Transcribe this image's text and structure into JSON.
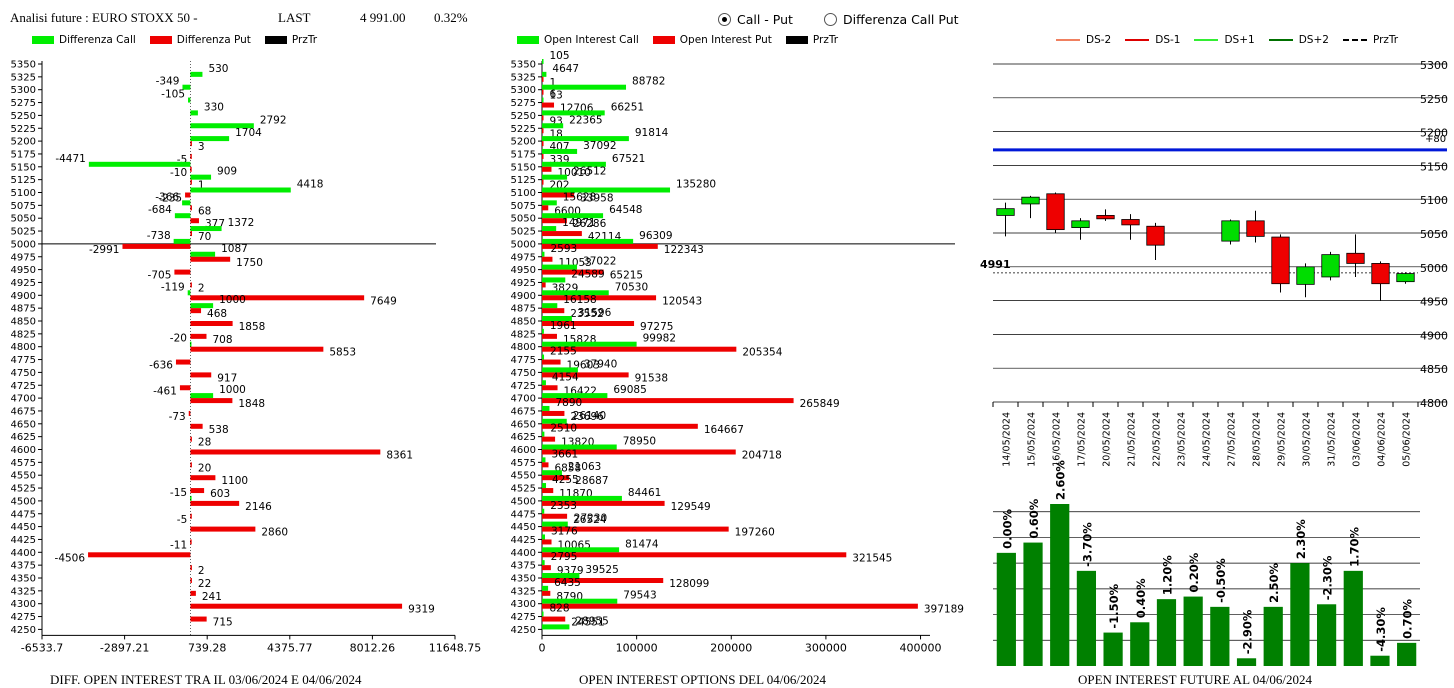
{
  "header": {
    "title": "Analisi future : EURO STOXX 50 -",
    "last_label": "LAST",
    "last_value": "4 991.00",
    "change": "0.32%"
  },
  "radio": {
    "call_put": "Call - Put",
    "diff": "Differenza Call Put",
    "selected": "call_put"
  },
  "legend_left": {
    "call": "Differenza Call",
    "put": "Differenza Put",
    "prz": "PrzTr"
  },
  "legend_mid": {
    "call": "Open Interest Call",
    "put": "Open Interest Put",
    "prz": "PrzTr"
  },
  "legend_right": {
    "ds_m2": "DS-2",
    "ds_m1": "DS-1",
    "ds_p1": "DS+1",
    "ds_p2": "DS+2",
    "prz": "PrzTr"
  },
  "captions": {
    "left": "DIFF. OPEN INTEREST TRA IL 03/06/2024 E 04/06/2024",
    "mid": "OPEN INTEREST OPTIONS DEL 04/06/2024",
    "right": "OPEN INTEREST FUTURE AL 04/06/2024"
  },
  "colors": {
    "call": "#00ee00",
    "put": "#ee0000",
    "blue": "#0018d8",
    "dark_green": "#008000"
  },
  "chart_data": [
    {
      "type": "bar",
      "orientation": "horizontal",
      "strikes": [
        "5350",
        "5325",
        "5300",
        "5275",
        "5250",
        "5225",
        "5200",
        "5175",
        "5150",
        "5125",
        "5100",
        "5075",
        "5050",
        "5025",
        "5000",
        "4975",
        "4950",
        "4925",
        "4900",
        "4875",
        "4850",
        "4825",
        "4800",
        "4775",
        "4750",
        "4725",
        "4700",
        "4675",
        "4650",
        "4625",
        "4600",
        "4575",
        "4550",
        "4525",
        "4500",
        "4475",
        "4450",
        "4425",
        "4400",
        "4375",
        "4350",
        "4325",
        "4300",
        "4275",
        "4250"
      ],
      "series": [
        {
          "name": "Differenza Call",
          "values": [
            null,
            530,
            -349,
            -105,
            330,
            2792,
            1704,
            null,
            -4471,
            909,
            4418,
            -366,
            -684,
            1372,
            -738,
            1087,
            null,
            null,
            -119,
            1000,
            null,
            null,
            -20,
            null,
            null,
            null,
            1000,
            null,
            null,
            null,
            null,
            null,
            null,
            null,
            -15,
            null,
            null,
            null,
            null,
            null,
            null,
            null,
            null,
            null,
            null
          ]
        },
        {
          "name": "Differenza Put",
          "values": [
            null,
            null,
            null,
            null,
            null,
            null,
            3,
            -5,
            -10,
            1,
            -235,
            68,
            377,
            70,
            -2991,
            1750,
            -705,
            2,
            7649,
            468,
            1858,
            708,
            5853,
            -636,
            917,
            -461,
            1848,
            -73,
            538,
            28,
            8361,
            20,
            1100,
            603,
            2146,
            -5,
            2860,
            -11,
            -4506,
            2,
            22,
            241,
            9319,
            715,
            null
          ]
        }
      ],
      "xticks": [
        "-6533.7",
        "-2897.21",
        "739.28",
        "4375.77",
        "8012.26",
        "11648.75"
      ],
      "xlim": [
        -6533.7,
        11648.75
      ],
      "price_strike": "5000"
    },
    {
      "type": "bar",
      "orientation": "horizontal",
      "strikes": [
        "5350",
        "5325",
        "5300",
        "5275",
        "5250",
        "5225",
        "5200",
        "5175",
        "5150",
        "5125",
        "5100",
        "5075",
        "5050",
        "5025",
        "5000",
        "4975",
        "4950",
        "4925",
        "4900",
        "4875",
        "4850",
        "4825",
        "4800",
        "4775",
        "4750",
        "4725",
        "4700",
        "4675",
        "4650",
        "4625",
        "4600",
        "4575",
        "4550",
        "4525",
        "4500",
        "4475",
        "4450",
        "4425",
        "4400",
        "4375",
        "4350",
        "4325",
        "4300",
        "4275",
        "4250"
      ],
      "series": [
        {
          "name": "Open Interest Call",
          "values": [
            105,
            4647,
            88782,
            6,
            66251,
            22365,
            91814,
            37092,
            67521,
            26512,
            135280,
            15628,
            64548,
            14971,
            96309,
            2593,
            37022,
            24589,
            70530,
            16158,
            31596,
            1961,
            99982,
            2155,
            37940,
            4154,
            69085,
            7890,
            26140,
            2510,
            78950,
            3661,
            21063,
            4255,
            84461,
            2353,
            27230,
            3176,
            81474,
            2795,
            39525,
            6435,
            79543,
            828,
            28955
          ]
        },
        {
          "name": "Open Interest Put",
          "values": [
            null,
            1,
            13,
            12706,
            93,
            18,
            407,
            339,
            10010,
            202,
            33958,
            6600,
            26286,
            42114,
            122343,
            11053,
            65215,
            3829,
            120543,
            23552,
            97275,
            15828,
            205354,
            19603,
            91538,
            16422,
            265849,
            23696,
            164667,
            13820,
            204718,
            6858,
            28687,
            11870,
            129549,
            26524,
            197260,
            10065,
            321545,
            9379,
            128099,
            8790,
            397189,
            24551,
            null
          ]
        }
      ],
      "xticks": [
        "0",
        "100000",
        "200000",
        "300000",
        "400000"
      ],
      "xlim": [
        0,
        410000
      ],
      "price_strike": "5000"
    },
    {
      "type": "candlestick",
      "dates": [
        "14/05/2024",
        "15/05/2024",
        "16/05/2024",
        "17/05/2024",
        "20/05/2024",
        "21/05/2024",
        "22/05/2024",
        "23/05/2024",
        "24/05/2024",
        "27/05/2024",
        "28/05/2024",
        "29/05/2024",
        "30/05/2024",
        "31/05/2024",
        "03/06/2024",
        "04/06/2024",
        "05/06/2024"
      ],
      "candles": [
        {
          "o": 5076,
          "h": 5095,
          "l": 5045,
          "c": 5086
        },
        {
          "o": 5093,
          "h": 5105,
          "l": 5072,
          "c": 5103
        },
        {
          "o": 5108,
          "h": 5110,
          "l": 5050,
          "c": 5055
        },
        {
          "o": 5058,
          "h": 5072,
          "l": 5040,
          "c": 5068
        },
        {
          "o": 5076,
          "h": 5085,
          "l": 5068,
          "c": 5071
        },
        {
          "o": 5070,
          "h": 5078,
          "l": 5040,
          "c": 5062
        },
        {
          "o": 5060,
          "h": 5065,
          "l": 5010,
          "c": 5032
        },
        null,
        null,
        {
          "o": 5038,
          "h": 5070,
          "l": 5033,
          "c": 5068
        },
        {
          "o": 5068,
          "h": 5083,
          "l": 5036,
          "c": 5045
        },
        {
          "o": 5044,
          "h": 5048,
          "l": 4962,
          "c": 4975
        },
        {
          "o": 4974,
          "h": 5005,
          "l": 4955,
          "c": 5000
        },
        {
          "o": 4985,
          "h": 5022,
          "l": 4980,
          "c": 5018
        },
        {
          "o": 5020,
          "h": 5048,
          "l": 4985,
          "c": 5005
        },
        {
          "o": 5005,
          "h": 5008,
          "l": 4950,
          "c": 4975
        },
        {
          "o": 4978,
          "h": 4992,
          "l": 4975,
          "c": 4990
        }
      ],
      "yticks": [
        "5300",
        "5250",
        "5200",
        "5150",
        "5100",
        "5050",
        "5000",
        "4950",
        "4900",
        "4850",
        "4800"
      ],
      "ylim": [
        4800,
        5300
      ],
      "level_blue": 5173,
      "level_label": "+80",
      "price_line": 4991,
      "price_label": "4991"
    },
    {
      "type": "bar",
      "labels": [
        "0.00%",
        "0.60%",
        "2.60%",
        "-3.70%",
        "-1.50%",
        "0.40%",
        "1.20%",
        "0.20%",
        "-0.50%",
        "-2.90%",
        "2.50%",
        "2.30%",
        "-2.30%",
        "1.70%",
        "-4.30%",
        "0.70%"
      ],
      "values": [
        44,
        48,
        63,
        37,
        13,
        17,
        26,
        27,
        23,
        3,
        23,
        40,
        24,
        37,
        4,
        9
      ],
      "ylim": [
        0,
        70
      ]
    }
  ]
}
